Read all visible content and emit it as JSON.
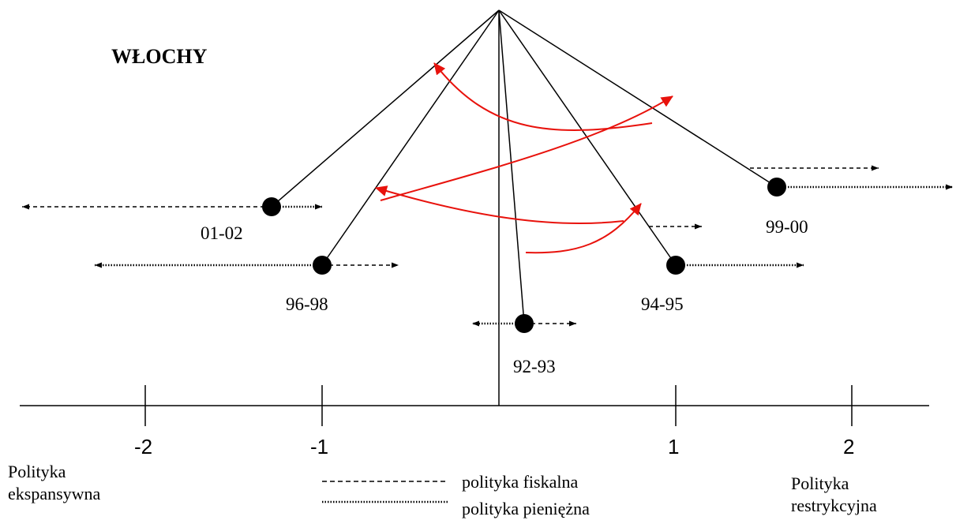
{
  "title": "WŁOCHY",
  "axis": {
    "ticks": [
      {
        "value": -2,
        "label": "-2"
      },
      {
        "value": -1,
        "label": "-1"
      },
      {
        "value": 1,
        "label": "1"
      },
      {
        "value": 2,
        "label": "2"
      }
    ],
    "left_caption": [
      "Polityka",
      "ekspansywna"
    ],
    "right_caption": [
      "Polityka",
      "restrykcyjna"
    ]
  },
  "periods": [
    {
      "id": "92-93",
      "label": "92-93",
      "fiscal": "restrictive",
      "monetary": "expansive"
    },
    {
      "id": "94-95",
      "label": "94-95",
      "fiscal": "restrictive",
      "monetary": "restrictive"
    },
    {
      "id": "96-98",
      "label": "96-98",
      "fiscal": "restrictive",
      "monetary": "expansive"
    },
    {
      "id": "99-00",
      "label": "99-00",
      "fiscal": "restrictive",
      "monetary": "restrictive"
    },
    {
      "id": "01-02",
      "label": "01-02",
      "fiscal": "expansive",
      "monetary": "restrictive"
    }
  ],
  "transitions": [
    "92-93 → 94-95",
    "94-95 → 96-98",
    "96-98 → 99-00",
    "99-00 → 01-02"
  ],
  "legend": {
    "fiscal": "polityka fiskalna",
    "monetary": "polityka pieniężna"
  },
  "colors": {
    "ink": "#000000",
    "transition": "#e8120c"
  }
}
